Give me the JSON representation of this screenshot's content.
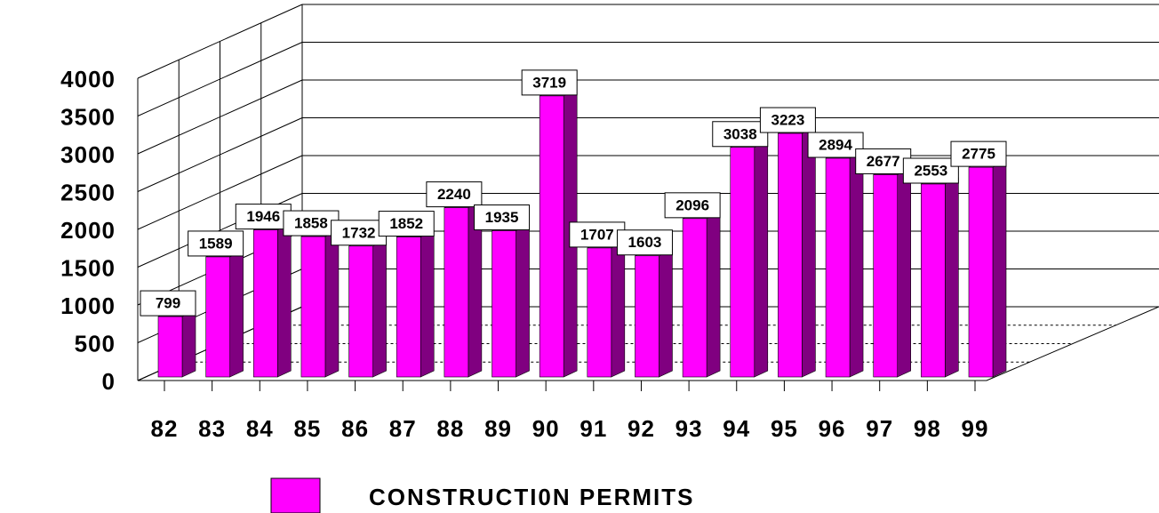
{
  "chart_data": {
    "type": "bar3d",
    "categories": [
      "82",
      "83",
      "84",
      "85",
      "86",
      "87",
      "88",
      "89",
      "90",
      "91",
      "92",
      "93",
      "94",
      "95",
      "96",
      "97",
      "98",
      "99"
    ],
    "series": [
      {
        "name": "CONSTRUCTI0N PERMITS",
        "color": "#ff00ff",
        "values": [
          799,
          1589,
          1946,
          1858,
          1732,
          1852,
          2240,
          1935,
          3719,
          1707,
          1603,
          2096,
          3038,
          3223,
          2894,
          2677,
          2553,
          2775
        ]
      }
    ],
    "ylim": [
      0,
      4000
    ],
    "yticks": [
      0,
      500,
      1000,
      1500,
      2000,
      2500,
      3000,
      3500,
      4000
    ],
    "grid": true
  }
}
